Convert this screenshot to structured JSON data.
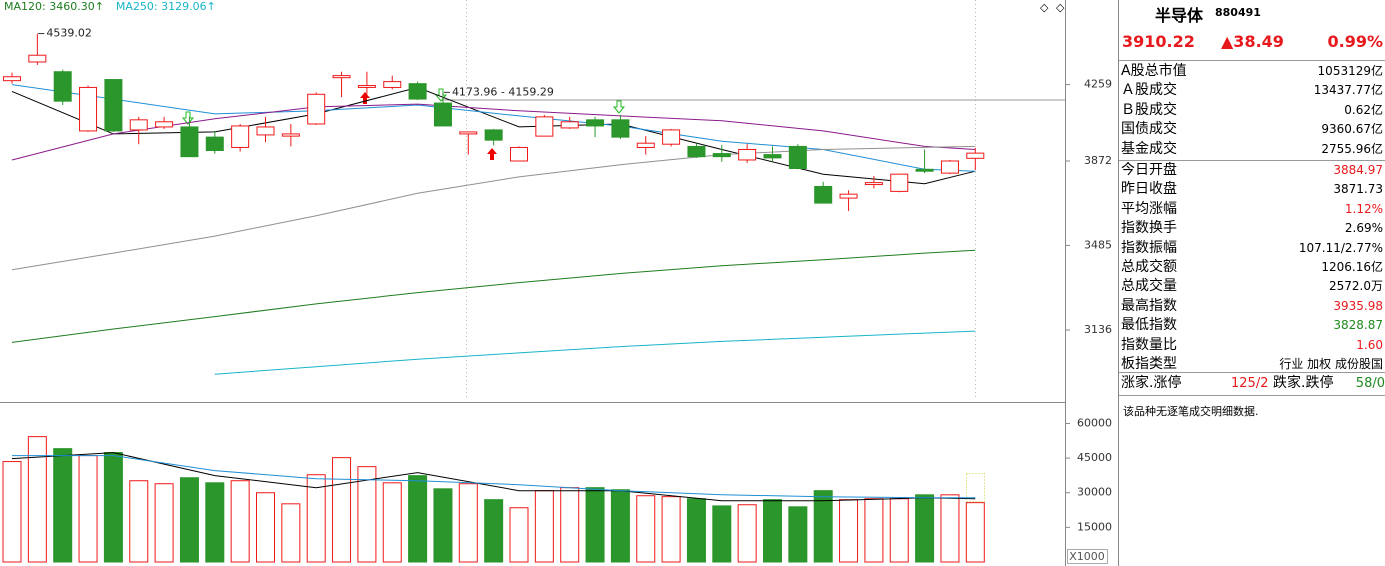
{
  "chart_data": [
    {
      "type": "candlestick",
      "categories": [
        null,
        null,
        null,
        null,
        null,
        null,
        null,
        null,
        null,
        null,
        null,
        null,
        null,
        null,
        null,
        null,
        null,
        null,
        null,
        null,
        null,
        null,
        null,
        null,
        null,
        null,
        null,
        null,
        null,
        null,
        null,
        null,
        null,
        null,
        null,
        null,
        null,
        null,
        null
      ],
      "open": [
        4280,
        4381,
        4328,
        4020,
        4286,
        4025,
        4040,
        4040,
        3989,
        3938,
        4000,
        3994,
        4055,
        4296,
        4244,
        4244,
        4264,
        4162,
        4005,
        4025,
        3872,
        3994,
        4035,
        4076,
        4076,
        3938,
        3954,
        3943,
        3908,
        3877,
        3903,
        3943,
        3751,
        3697,
        3760,
        3728,
        3832,
        3814,
        3884.97
      ],
      "high": [
        4323,
        4539.02,
        4339,
        4254,
        4286,
        4091,
        4091,
        4091,
        4020,
        4055,
        4091,
        4055,
        4218,
        4328,
        4328,
        4307,
        4275,
        4218,
        4015,
        4030,
        3943,
        4101,
        4091,
        4091,
        4101,
        3994,
        4030,
        3959,
        3949,
        3954,
        3943,
        3954,
        3773,
        3733,
        3800,
        3809,
        3928,
        3877,
        3935.98
      ],
      "low": [
        4264,
        4365,
        4152,
        4015,
        4015,
        3954,
        4030,
        3893,
        3908,
        3918,
        3964,
        3943,
        4050,
        4193,
        4208,
        4234,
        4178,
        4045,
        3903,
        3948,
        3872,
        3994,
        4030,
        3989,
        3979,
        3903,
        3943,
        3887,
        3868,
        3863,
        3868,
        3832,
        3674,
        3638,
        3742,
        3724,
        3814,
        3809,
        3828.87
      ],
      "close": [
        4301,
        4418,
        4172,
        4244,
        4020,
        4076,
        4066,
        3893,
        3923,
        4045,
        4040,
        4005,
        4208,
        4307,
        4254,
        4275,
        4183,
        4045,
        4015,
        3974,
        3938,
        4091,
        4066,
        4045,
        3989,
        3959,
        4025,
        3893,
        3893,
        3928,
        3887,
        3836,
        3674,
        3715,
        3769,
        3809,
        3823,
        3872,
        3910.22
      ],
      "log_scale": true,
      "ylim": [
        2874,
        4733
      ],
      "yticks": [
        3136,
        3485,
        3872,
        4259
      ],
      "up_color": "#f01818",
      "down_color": "#2b962b",
      "hline": 4178,
      "annotations": [
        {
          "text": "4539.02",
          "x": 1,
          "y": 4539.02
        },
        {
          "text": "4173.96 - 4159.29",
          "x": 17,
          "y": 4218
        }
      ],
      "moving_averages": [
        {
          "color": "#000000",
          "x": [
            0,
            4,
            8,
            12,
            16,
            20,
            24,
            28,
            32,
            36,
            38
          ],
          "values": [
            4223,
            4005,
            4015,
            4106,
            4244,
            4040,
            4055,
            3928,
            3809,
            3764,
            3823
          ]
        },
        {
          "color": "#1f8fd6",
          "x": [
            0,
            4,
            8,
            12,
            16,
            20,
            24,
            28,
            32,
            36,
            38
          ],
          "values": [
            4259,
            4183,
            4106,
            4122,
            4152,
            4096,
            4045,
            3969,
            3928,
            3832,
            3823
          ]
        },
        {
          "color": "#8b1a8b",
          "x": [
            0,
            4,
            8,
            12,
            16,
            20,
            24,
            28,
            32,
            36,
            38
          ],
          "values": [
            3877,
            4005,
            4081,
            4142,
            4157,
            4122,
            4096,
            4071,
            4020,
            3943,
            3928
          ]
        },
        {
          "color": "#909090",
          "x": [
            0,
            4,
            8,
            12,
            16,
            20,
            24,
            28,
            32,
            36,
            38
          ],
          "values": [
            3381,
            3452,
            3526,
            3616,
            3719,
            3796,
            3854,
            3903,
            3928,
            3938,
            3943
          ]
        },
        {
          "color": "#1e7d1e",
          "legend_label": "MA120: 3460.30↑",
          "x": [
            0,
            4,
            8,
            12,
            16,
            20,
            24,
            28,
            32,
            36,
            38
          ],
          "values": [
            3088,
            3140,
            3189,
            3240,
            3286,
            3327,
            3365,
            3398,
            3423,
            3452,
            3464
          ]
        },
        {
          "color": "#17b5c8",
          "legend_label": "MA250: 3129.06↑",
          "x": [
            8,
            12,
            16,
            20,
            24,
            28,
            32,
            36,
            38
          ],
          "values": [
            2968,
            2996,
            3024,
            3048,
            3072,
            3092,
            3108,
            3124,
            3132
          ]
        }
      ]
    },
    {
      "type": "bar",
      "values": [
        43500,
        54300,
        49100,
        46100,
        47400,
        35200,
        33900,
        36500,
        34300,
        35200,
        30000,
        25200,
        37800,
        45200,
        41300,
        34300,
        37400,
        31700,
        33900,
        27000,
        23500,
        30900,
        32200,
        32200,
        31300,
        28700,
        28300,
        27400,
        24300,
        24800,
        27000,
        23900,
        30900,
        27000,
        27400,
        27400,
        29100,
        29100,
        25700
      ],
      "ylim": [
        0,
        68000
      ],
      "yticks": [
        15000,
        30000,
        45000,
        60000
      ],
      "unit_label": "X1000",
      "moving_averages": [
        {
          "color": "#000000",
          "x": [
            0,
            4,
            8,
            12,
            16,
            20,
            24,
            28,
            32,
            36,
            38
          ],
          "values": [
            44800,
            47400,
            37400,
            32200,
            38700,
            30900,
            30900,
            26500,
            26500,
            27800,
            27400
          ]
        },
        {
          "color": "#1f8fd6",
          "x": [
            0,
            4,
            8,
            12,
            16,
            20,
            24,
            28,
            32,
            36,
            38
          ],
          "values": [
            46100,
            46100,
            39600,
            36100,
            35200,
            33500,
            30900,
            29100,
            28300,
            27800,
            27800
          ]
        }
      ]
    }
  ],
  "info": {
    "name": "半导体",
    "code": "880491",
    "price": "3910.22",
    "change": "▲38.49",
    "change_pct": "0.99%",
    "price_color": "#e8191c",
    "rows": [
      {
        "label": "A股总市值",
        "value": "1053129亿"
      },
      {
        "label": "Ａ股成交",
        "value": "13437.77亿"
      },
      {
        "label": "Ｂ股成交",
        "value": "0.62亿"
      },
      {
        "label": "国债成交",
        "value": "9360.67亿"
      },
      {
        "label": "基金成交",
        "value": "2755.96亿"
      },
      {
        "label": "今日开盘",
        "value": "3884.97",
        "color": "#e8191c"
      },
      {
        "label": "昨日收盘",
        "value": "3871.73"
      },
      {
        "label": "平均涨幅",
        "value": "1.12%",
        "color": "#e8191c"
      },
      {
        "label": "指数换手",
        "value": "2.69%"
      },
      {
        "label": "指数振幅",
        "value": "107.11/2.77%"
      },
      {
        "label": "总成交额",
        "value": "1206.16亿"
      },
      {
        "label": "总成交量",
        "value": "2572.0万"
      },
      {
        "label": "最高指数",
        "value": "3935.98",
        "color": "#e8191c"
      },
      {
        "label": "最低指数",
        "value": "3828.87",
        "color": "#1e8a1e"
      },
      {
        "label": "指数量比",
        "value": "1.60",
        "color": "#e8191c"
      },
      {
        "label": "板指类型",
        "value": "行业 加权 成份股国"
      }
    ],
    "breadth": {
      "up_label": "涨家.涨停",
      "up_value": "125/2",
      "down_label": "跌家.跌停",
      "down_value": "58/0"
    },
    "note": "该品种无逐笔成交明细数据."
  }
}
